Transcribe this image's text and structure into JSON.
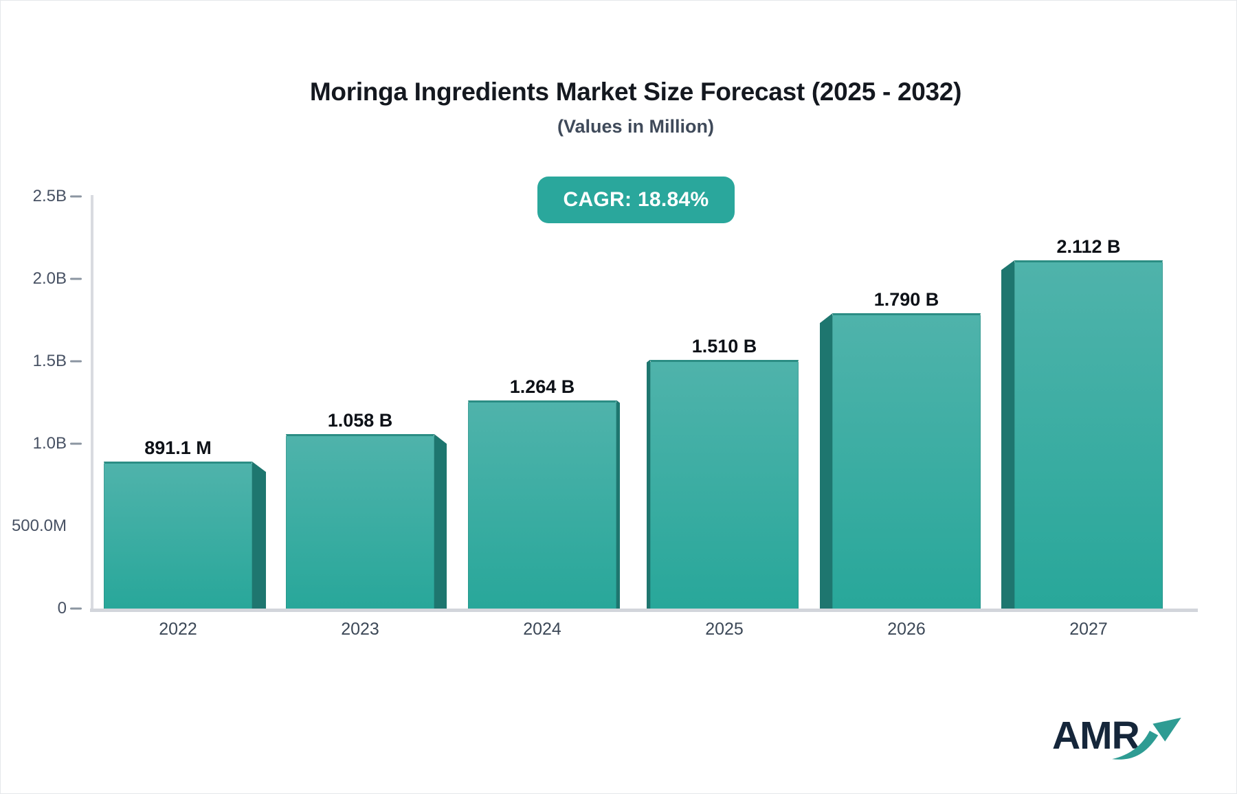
{
  "header": {
    "title": "Moringa Ingredients Market Size Forecast (2025 - 2032)",
    "subtitle": "(Values in Million)"
  },
  "badge": {
    "label": "CAGR: 18.84%",
    "background": "#2aa79c",
    "text_color": "#ffffff"
  },
  "chart_data": {
    "type": "bar",
    "title": "Moringa Ingredients Market Size Forecast (2025 - 2032)",
    "subtitle": "(Values in Million)",
    "cagr_percent": 18.84,
    "categories": [
      "2022",
      "2023",
      "2024",
      "2025",
      "2026",
      "2027"
    ],
    "values_million": [
      891.1,
      1058,
      1264,
      1510,
      1790,
      2112
    ],
    "value_labels": [
      "891.1 M",
      "1.058 B",
      "1.264 B",
      "1.510 B",
      "1.790 B",
      "2.112 B"
    ],
    "ylim_million": [
      0,
      2500
    ],
    "y_ticks": [
      {
        "label": "2.5B",
        "value_million": 2500,
        "dash": true
      },
      {
        "label": "2.0B",
        "value_million": 2000,
        "dash": true
      },
      {
        "label": "1.5B",
        "value_million": 1500,
        "dash": true
      },
      {
        "label": "1.0B",
        "value_million": 1000,
        "dash": true
      },
      {
        "label": "500.0M",
        "value_million": 500,
        "dash": false
      },
      {
        "label": "0",
        "value_million": 0,
        "dash": true
      }
    ],
    "grid": false,
    "legend": null,
    "depth_side_by_bar": [
      "right",
      "right",
      "right",
      "left",
      "left",
      "left"
    ],
    "depth_width_by_bar": [
      20,
      18,
      5,
      5,
      18,
      19
    ],
    "colors": {
      "bar_fill_top": "#4fb3ab",
      "bar_fill_bottom": "#28a79a",
      "bar_top_edge": "#2b8d84",
      "bar_depth_side": "#1e766f",
      "axis_line": "#d9dbe0",
      "tick_text": "#475163"
    }
  },
  "logo": {
    "text": "AMR",
    "text_color": "#15263a",
    "arrow_color": "#2e9c93",
    "arrow_icon": "trend-up-arrow"
  }
}
